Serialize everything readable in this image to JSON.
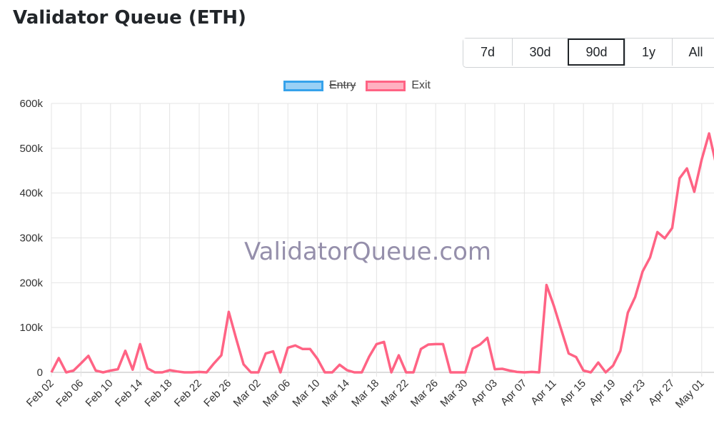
{
  "page": {
    "title": "Validator Queue (ETH)"
  },
  "range_selector": {
    "options": [
      {
        "label": "7d",
        "active": false
      },
      {
        "label": "30d",
        "active": false
      },
      {
        "label": "90d",
        "active": true
      },
      {
        "label": "1y",
        "active": false
      },
      {
        "label": "All",
        "active": false
      }
    ]
  },
  "watermark": "ValidatorQueue.com",
  "chart_data": {
    "type": "line",
    "x_tick_labels": [
      "Feb 02",
      "Feb 06",
      "Feb 10",
      "Feb 14",
      "Feb 18",
      "Feb 22",
      "Feb 26",
      "Mar 02",
      "Mar 06",
      "Mar 10",
      "Mar 14",
      "Mar 18",
      "Mar 22",
      "Mar 26",
      "Mar 30",
      "Apr 03",
      "Apr 07",
      "Apr 11",
      "Apr 15",
      "Apr 19",
      "Apr 23",
      "Apr 27",
      "May 01"
    ],
    "y_tick_labels": [
      "0",
      "100k",
      "200k",
      "300k",
      "400k",
      "500k",
      "600k"
    ],
    "ylim": [
      0,
      600000
    ],
    "grid": true,
    "legend_position": "top",
    "series": [
      {
        "name": "Entry",
        "hidden": true,
        "color": "#36a2eb",
        "fill": "#9ad0f5",
        "values": []
      },
      {
        "name": "Exit",
        "hidden": false,
        "color": "#ff6384",
        "fill": "#ffb1c1",
        "values": [
          0,
          32000,
          0,
          4000,
          20000,
          37000,
          4000,
          0,
          4000,
          7000,
          48000,
          6000,
          63000,
          9000,
          0,
          0,
          5000,
          2000,
          0,
          0,
          1000,
          0,
          20000,
          38000,
          135000,
          75000,
          18000,
          0,
          0,
          42000,
          47000,
          0,
          55000,
          60000,
          52000,
          52000,
          30000,
          0,
          0,
          17000,
          5000,
          0,
          0,
          35000,
          63000,
          68000,
          0,
          38000,
          0,
          0,
          52000,
          62000,
          63000,
          63000,
          0,
          0,
          0,
          53000,
          62000,
          77000,
          7000,
          8000,
          4000,
          1000,
          0,
          1000,
          0,
          195000,
          148000,
          95000,
          42000,
          34000,
          4000,
          0,
          22000,
          0,
          15000,
          48000,
          133000,
          168000,
          225000,
          256000,
          313000,
          299000,
          322000,
          433000,
          455000,
          403000,
          475000,
          533000,
          460000
        ]
      }
    ]
  }
}
